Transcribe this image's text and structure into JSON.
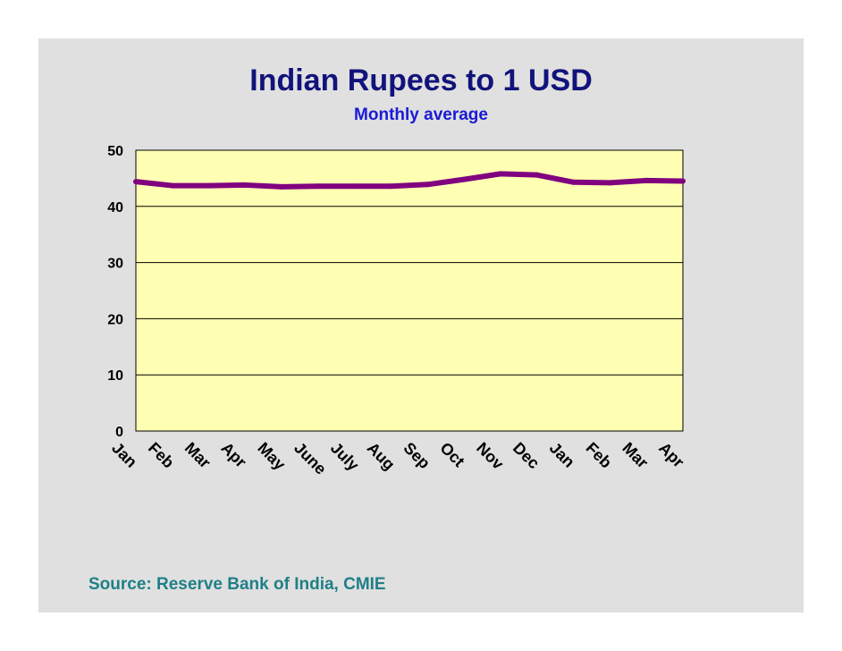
{
  "source": "Source: Reserve Bank of India, CMIE",
  "colors": {
    "background": "#e0e0e0",
    "plot_area": "#ffffb3",
    "line": "#800080",
    "title": "#12137a",
    "subtitle": "#1a1ad6",
    "source": "#1f7f86"
  },
  "chart_data": {
    "type": "line",
    "title": "Indian Rupees to 1 USD",
    "subtitle": "Monthly average",
    "xlabel": "",
    "ylabel": "",
    "categories": [
      "Jan",
      "Feb",
      "Mar",
      "Apr",
      "May",
      "June",
      "July",
      "Aug",
      "Sep",
      "Oct",
      "Nov",
      "Dec",
      "Jan",
      "Feb",
      "Mar",
      "Apr"
    ],
    "series": [
      {
        "values": [
          44.4,
          43.7,
          43.7,
          43.8,
          43.5,
          43.6,
          43.6,
          43.6,
          43.9,
          44.8,
          45.8,
          45.6,
          44.3,
          44.2,
          44.6,
          44.5
        ]
      }
    ],
    "ylim": [
      0,
      50
    ],
    "yticks": [
      0,
      10,
      20,
      30,
      40,
      50
    ],
    "grid": true,
    "legend": "none"
  }
}
